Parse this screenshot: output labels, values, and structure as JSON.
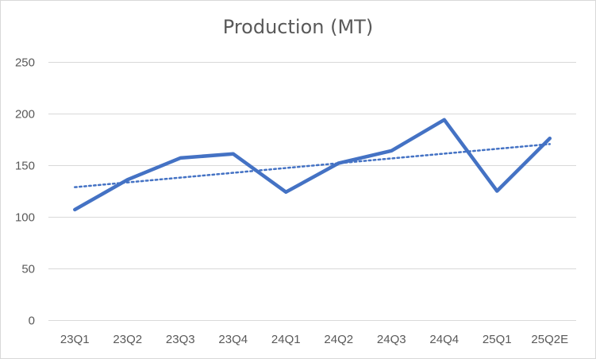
{
  "chart_data": {
    "type": "line",
    "title": "Production (MT)",
    "xlabel": "",
    "ylabel": "",
    "categories": [
      "23Q1",
      "23Q2",
      "23Q3",
      "23Q4",
      "24Q1",
      "24Q2",
      "24Q3",
      "24Q4",
      "25Q1",
      "25Q2E"
    ],
    "series": [
      {
        "values": [
          107,
          136,
          157,
          161,
          124,
          152,
          164,
          194,
          125,
          176
        ],
        "color": "#4472c4",
        "style": "solid"
      }
    ],
    "trendline": {
      "type": "linear",
      "style": "dotted",
      "color": "#4472c4"
    },
    "ylim": [
      0,
      250
    ],
    "yticks": [
      0,
      50,
      100,
      150,
      200,
      250
    ],
    "grid": true,
    "legend": "none"
  }
}
